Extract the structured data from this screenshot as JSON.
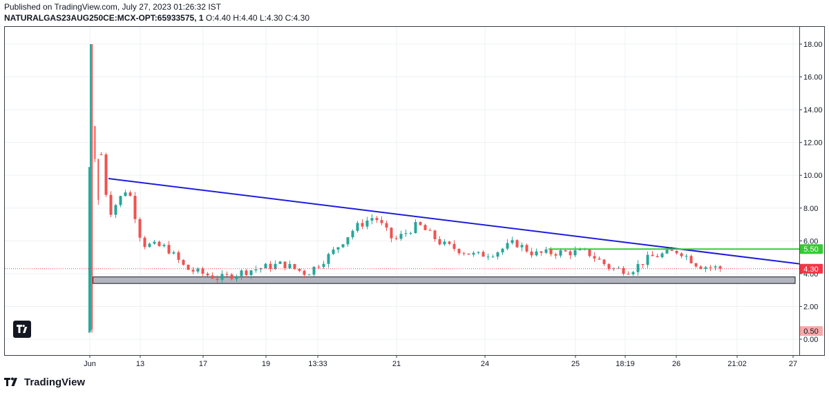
{
  "header": {
    "published": "Published on TradingView.com, July 27, 2023 01:26:32 IST",
    "symbol": "NATURALGAS23AUG250CE:MCX-OPT:65933575, 1",
    "ohlc": "O:4.40 H:4.40 L:4.30 C:4.30"
  },
  "branding": {
    "logo_text": "TradingView",
    "logo_icon": "tradingview-logo-icon"
  },
  "colors": {
    "up": "#26a69a",
    "down": "#ef5350",
    "trendline": "#1c1cdc",
    "support_line": "#33cc33",
    "zone_fill": "#b2b5be",
    "price_line": "#f23645",
    "grid": "#eef0f3"
  },
  "chart_data": {
    "type": "candlestick",
    "ylim": [
      -0.6,
      19.0
    ],
    "y_ticks": [
      "0.00",
      "2.00",
      "4.00",
      "6.00",
      "8.00",
      "10.00",
      "12.00",
      "14.00",
      "16.00",
      "18.00"
    ],
    "x_ticks": [
      "Jun",
      "13",
      "17",
      "19",
      "13:33",
      "21",
      "24",
      "25",
      "18:19",
      "26",
      "21:02",
      "27"
    ],
    "last_price": {
      "value": 4.3,
      "label": "4.30"
    },
    "price_labels": [
      {
        "value": 5.5,
        "label": "5.50",
        "color": "#33cc33"
      },
      {
        "value": 0.5,
        "label": "0.50",
        "color": "#f7a9a8"
      }
    ],
    "series": [
      {
        "name": "price",
        "points": [
          [
            0.4,
            10.5
          ],
          [
            0.6,
            18.0
          ],
          [
            3.0,
            9.5
          ],
          [
            4.5,
            7.8
          ],
          [
            8.0,
            9.3
          ],
          [
            11.0,
            5.8
          ],
          [
            16.0,
            5.6
          ],
          [
            20.0,
            4.3
          ],
          [
            27.0,
            3.7
          ],
          [
            33.0,
            4.2
          ],
          [
            40.0,
            4.6
          ],
          [
            45.0,
            4.0
          ],
          [
            50.0,
            5.2
          ],
          [
            55.0,
            6.8
          ],
          [
            59.0,
            7.5
          ],
          [
            63.0,
            6.0
          ],
          [
            68.0,
            7.0
          ],
          [
            73.0,
            5.8
          ],
          [
            80.0,
            5.1
          ],
          [
            84.0,
            5.3
          ],
          [
            88.0,
            5.9
          ],
          [
            92.0,
            5.2
          ],
          [
            97.0,
            5.3
          ],
          [
            103.0,
            5.3
          ],
          [
            108.0,
            4.3
          ],
          [
            112.0,
            4.2
          ],
          [
            116.0,
            5.0
          ],
          [
            122.0,
            5.4
          ],
          [
            126.0,
            4.5
          ],
          [
            131.0,
            4.3
          ]
        ]
      }
    ],
    "annotations": [
      {
        "type": "trendline",
        "from": [
          4.0,
          9.8
        ],
        "to": [
          146.0,
          4.6
        ]
      },
      {
        "type": "horizontal_line",
        "from": [
          95.0,
          5.5
        ],
        "to": [
          146.0,
          5.5
        ],
        "value": 5.5
      },
      {
        "type": "zone",
        "x_from": 0.8,
        "x_to": 146.0,
        "y_from": 3.4,
        "y_to": 3.8
      }
    ]
  }
}
